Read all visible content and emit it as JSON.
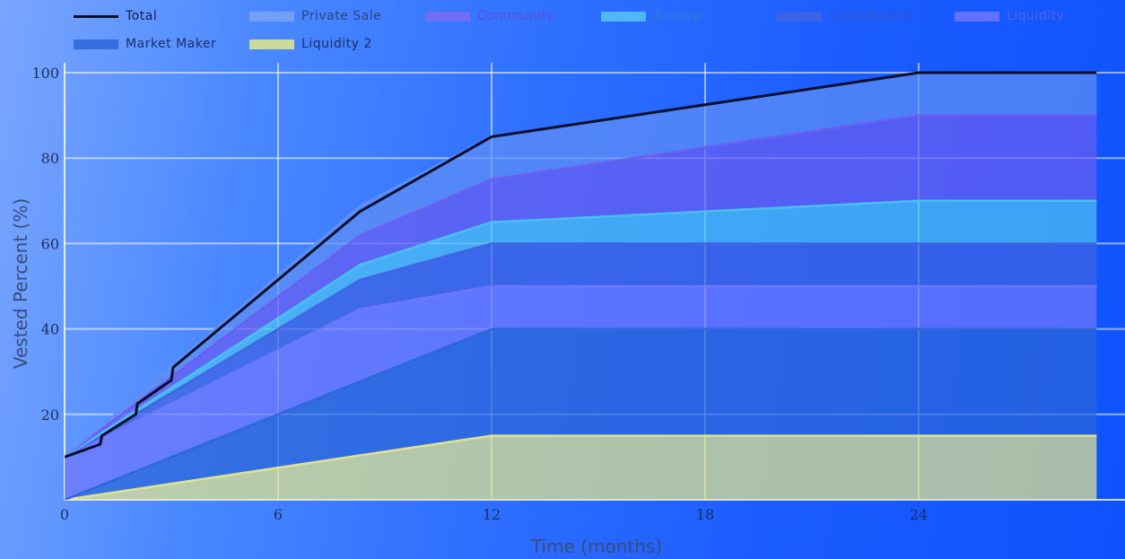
{
  "chart_data": {
    "type": "area",
    "title": "",
    "xlabel": "Time (months)",
    "ylabel": "Vested Percent (%)",
    "xlim": [
      0,
      29
    ],
    "ylim": [
      0,
      100
    ],
    "x_ticks": [
      0,
      6,
      12,
      18,
      24
    ],
    "y_ticks": [
      20,
      40,
      60,
      80,
      100
    ],
    "grid": true,
    "stacked": true,
    "legend_position": "top",
    "x": [
      0,
      1,
      2,
      3,
      8.3,
      12,
      24,
      29
    ],
    "series": [
      {
        "name": "Liquidity 2",
        "color": "#e4e78a",
        "values": [
          0,
          1.25,
          2.5,
          3.75,
          10.4,
          15,
          15,
          15
        ]
      },
      {
        "name": "Market Maker",
        "color": "#2d66d8",
        "values": [
          0,
          2.08,
          4.17,
          6.25,
          17.3,
          25,
          25,
          25
        ]
      },
      {
        "name": "Liquidity",
        "color": "#7077ff",
        "values": [
          10,
          10.8,
          11.7,
          12.5,
          16.9,
          10,
          10,
          10
        ]
      },
      {
        "name": "Contributors",
        "color": "#3f64e2",
        "values": [
          0,
          0.83,
          1.67,
          2.5,
          6.9,
          10,
          10,
          10
        ]
      },
      {
        "name": "Airdrop",
        "color": "#4cc1f3",
        "values": [
          0,
          0.42,
          0.83,
          1.25,
          3.5,
          5,
          10,
          10
        ]
      },
      {
        "name": "Community",
        "color": "#6a5ef0",
        "values": [
          0,
          0.83,
          1.67,
          2.5,
          6.9,
          10,
          20,
          20
        ]
      },
      {
        "name": "Private Sale",
        "color": "#5f8ff5",
        "values": [
          0,
          0.83,
          1.67,
          2.5,
          6.9,
          10,
          10,
          10
        ]
      }
    ],
    "total": {
      "name": "Total",
      "color": "#0a0f2a",
      "x": [
        0,
        1,
        1.05,
        2,
        2.05,
        3,
        3.05,
        8.3,
        12,
        24,
        29
      ],
      "values": [
        10,
        13,
        15,
        20,
        22.5,
        28,
        31,
        67.5,
        85,
        100,
        100
      ]
    }
  },
  "legend": [
    {
      "label": "Total",
      "kind": "line",
      "color": "#0a0f2a",
      "text_color": "#16234a"
    },
    {
      "label": "Private Sale",
      "kind": "area",
      "color": "#7aa4f6",
      "text_color": "#2c4680"
    },
    {
      "label": "Community",
      "kind": "area",
      "color": "#7a6cf2",
      "text_color": "#5a4fd6"
    },
    {
      "label": "Airdrop",
      "kind": "area",
      "color": "#56c4f5",
      "text_color": "#2a7fcf"
    },
    {
      "label": "Contributors",
      "kind": "area",
      "color": "#3f64e2",
      "text_color": "#3553c6"
    },
    {
      "label": "Liquidity",
      "kind": "area",
      "color": "#7077ff",
      "text_color": "#5560ea"
    },
    {
      "label": "Market Maker",
      "kind": "area",
      "color": "#2d66d8",
      "text_color": "#1c2f63"
    },
    {
      "label": "Liquidity 2",
      "kind": "area",
      "color": "#e4e78a",
      "text_color": "#1c2f63"
    }
  ]
}
